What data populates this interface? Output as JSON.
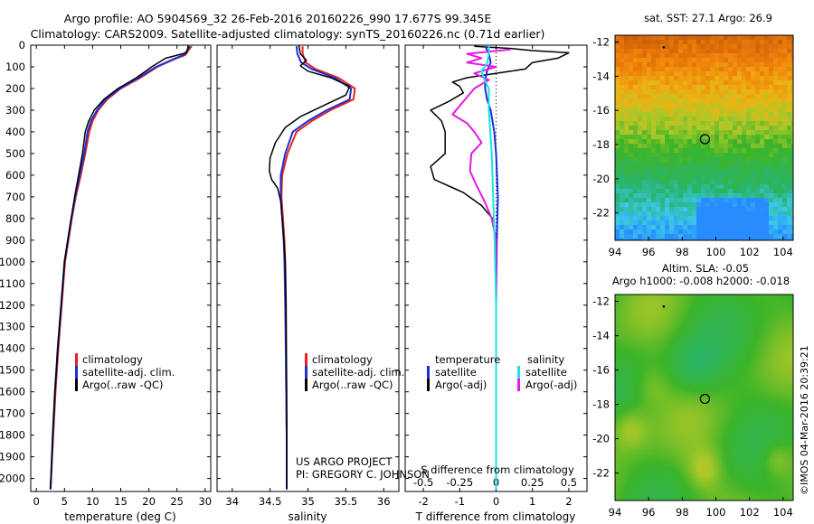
{
  "header": {
    "line1": "Argo profile: AO 5904569_32 26-Feb-2016 20160226_990 17.677S 99.345E",
    "line2": "Climatology: CARS2009. Satellite-adjusted climatology: synTS_20160226.nc (0.71d earlier)"
  },
  "colors": {
    "climatology": "#e8231e",
    "satellite": "#1a2fd6",
    "argo": "#000000",
    "sat_salinity": "#19e3e8",
    "argo_salinity": "#e619e6"
  },
  "chart_data": [
    {
      "id": "temperature",
      "type": "line",
      "xlabel": "temperature (deg C)",
      "ylabel": "",
      "xlim": [
        -1,
        31
      ],
      "ylim": [
        2060,
        0
      ],
      "xticks": [
        "0",
        "5",
        "10",
        "15",
        "20",
        "25",
        "30"
      ],
      "yticks": [
        "0",
        "100",
        "200",
        "300",
        "400",
        "500",
        "600",
        "700",
        "800",
        "900",
        "1000",
        "1100",
        "1200",
        "1300",
        "1400",
        "1500",
        "1600",
        "1700",
        "1800",
        "1900",
        "2000"
      ],
      "legend": [
        "climatology",
        "satellite-adj. clim.",
        "Argo(..raw -QC)"
      ],
      "series": [
        {
          "name": "climatology",
          "points": [
            [
              27.6,
              5
            ],
            [
              27.0,
              25
            ],
            [
              26.5,
              45
            ],
            [
              24.5,
              65
            ],
            [
              21.5,
              100
            ],
            [
              18.5,
              150
            ],
            [
              15.0,
              200
            ],
            [
              12.6,
              250
            ],
            [
              11.0,
              300
            ],
            [
              10.0,
              350
            ],
            [
              9.4,
              400
            ],
            [
              8.7,
              500
            ],
            [
              7.9,
              600
            ],
            [
              7.0,
              700
            ],
            [
              6.3,
              800
            ],
            [
              5.7,
              900
            ],
            [
              5.1,
              1000
            ],
            [
              4.5,
              1200
            ],
            [
              3.9,
              1400
            ],
            [
              3.4,
              1600
            ],
            [
              3.0,
              1800
            ],
            [
              2.6,
              2000
            ],
            [
              2.5,
              2050
            ]
          ]
        },
        {
          "name": "satellite",
          "points": [
            [
              27.3,
              5
            ],
            [
              26.8,
              25
            ],
            [
              26.2,
              45
            ],
            [
              24.3,
              65
            ],
            [
              21.3,
              100
            ],
            [
              18.2,
              150
            ],
            [
              14.8,
              200
            ],
            [
              12.3,
              250
            ],
            [
              10.8,
              300
            ],
            [
              9.7,
              350
            ],
            [
              9.1,
              400
            ],
            [
              8.5,
              500
            ],
            [
              7.7,
              600
            ],
            [
              6.9,
              700
            ],
            [
              6.2,
              800
            ],
            [
              5.6,
              900
            ],
            [
              5.0,
              1000
            ],
            [
              4.4,
              1200
            ],
            [
              3.8,
              1400
            ],
            [
              3.3,
              1600
            ],
            [
              2.9,
              1800
            ],
            [
              2.6,
              2000
            ],
            [
              2.5,
              2050
            ]
          ]
        },
        {
          "name": "argo",
          "points": [
            [
              27.0,
              0
            ],
            [
              26.9,
              15
            ],
            [
              26.7,
              35
            ],
            [
              23.0,
              60
            ],
            [
              20.5,
              100
            ],
            [
              17.8,
              150
            ],
            [
              14.5,
              200
            ],
            [
              12.0,
              250
            ],
            [
              10.3,
              300
            ],
            [
              9.3,
              350
            ],
            [
              8.7,
              400
            ],
            [
              8.2,
              500
            ],
            [
              7.5,
              600
            ],
            [
              6.8,
              700
            ],
            [
              6.2,
              800
            ],
            [
              5.6,
              900
            ],
            [
              5.0,
              1000
            ],
            [
              4.4,
              1200
            ],
            [
              3.8,
              1400
            ],
            [
              3.3,
              1600
            ],
            [
              2.9,
              1800
            ],
            [
              2.6,
              2000
            ],
            [
              2.5,
              2050
            ]
          ]
        }
      ]
    },
    {
      "id": "salinity",
      "type": "line",
      "xlabel": "salinity",
      "xlim": [
        33.8,
        36.2
      ],
      "ylim": [
        2060,
        0
      ],
      "xticks": [
        "34",
        "34.5",
        "35",
        "35.5",
        "36"
      ],
      "legend": [
        "climatology",
        "satellite-adj. clim.",
        "Argo(..raw -QC)"
      ],
      "credit_1": "US ARGO PROJECT",
      "credit_2": "PI: GREGORY C. JOHNSON",
      "series": [
        {
          "name": "climatology",
          "points": [
            [
              34.93,
              5
            ],
            [
              34.93,
              40
            ],
            [
              34.97,
              80
            ],
            [
              35.1,
              110
            ],
            [
              35.4,
              150
            ],
            [
              35.62,
              200
            ],
            [
              35.6,
              250
            ],
            [
              35.3,
              300
            ],
            [
              35.05,
              350
            ],
            [
              34.85,
              400
            ],
            [
              34.73,
              500
            ],
            [
              34.66,
              600
            ],
            [
              34.65,
              700
            ],
            [
              34.67,
              800
            ],
            [
              34.69,
              900
            ],
            [
              34.7,
              1000
            ],
            [
              34.71,
              1200
            ],
            [
              34.71,
              1500
            ],
            [
              34.72,
              1800
            ],
            [
              34.72,
              2050
            ]
          ]
        },
        {
          "name": "satellite",
          "points": [
            [
              34.85,
              5
            ],
            [
              34.86,
              40
            ],
            [
              34.91,
              80
            ],
            [
              35.05,
              110
            ],
            [
              35.35,
              150
            ],
            [
              35.57,
              200
            ],
            [
              35.55,
              250
            ],
            [
              35.25,
              300
            ],
            [
              35.0,
              350
            ],
            [
              34.8,
              400
            ],
            [
              34.7,
              500
            ],
            [
              34.64,
              600
            ],
            [
              34.64,
              700
            ],
            [
              34.66,
              800
            ],
            [
              34.68,
              900
            ],
            [
              34.69,
              1000
            ],
            [
              34.7,
              1200
            ],
            [
              34.71,
              1500
            ],
            [
              34.72,
              1800
            ],
            [
              34.72,
              2050
            ]
          ]
        },
        {
          "name": "argo",
          "points": [
            [
              34.88,
              0
            ],
            [
              34.9,
              40
            ],
            [
              34.98,
              70
            ],
            [
              34.9,
              95
            ],
            [
              35.0,
              120
            ],
            [
              35.3,
              150
            ],
            [
              35.55,
              190
            ],
            [
              35.5,
              230
            ],
            [
              35.2,
              280
            ],
            [
              34.9,
              330
            ],
            [
              34.7,
              380
            ],
            [
              34.57,
              450
            ],
            [
              34.5,
              520
            ],
            [
              34.49,
              580
            ],
            [
              34.52,
              620
            ],
            [
              34.6,
              660
            ],
            [
              34.64,
              720
            ],
            [
              34.66,
              800
            ],
            [
              34.68,
              900
            ],
            [
              34.7,
              1000
            ],
            [
              34.71,
              1200
            ],
            [
              34.72,
              1600
            ],
            [
              34.72,
              2050
            ]
          ]
        }
      ]
    },
    {
      "id": "difference",
      "type": "line",
      "xlabel": "T difference from climatology",
      "xlabel_top": "S difference from climatology",
      "xlim": [
        -2.5,
        2.5
      ],
      "ylim": [
        2060,
        0
      ],
      "xticks": [
        "-2",
        "-1",
        "0",
        "1",
        "2"
      ],
      "sticks": [
        "-0.5",
        "-0.25",
        "0",
        "0.25",
        "0.5"
      ],
      "legend_t_title": "temperature",
      "legend_s_title": "salinity",
      "legend_t": [
        "satellite",
        "Argo(-adj)"
      ],
      "legend_s": [
        "satellite",
        "Argo(-adj)"
      ],
      "series": [
        {
          "name": "T satellite",
          "points": [
            [
              -0.3,
              5
            ],
            [
              -0.2,
              40
            ],
            [
              -0.15,
              80
            ],
            [
              -0.25,
              120
            ],
            [
              -0.3,
              160
            ],
            [
              -0.3,
              200
            ],
            [
              -0.25,
              250
            ],
            [
              -0.15,
              300
            ],
            [
              -0.05,
              400
            ],
            [
              0,
              500
            ],
            [
              0.05,
              700
            ],
            [
              0.02,
              900
            ],
            [
              0,
              1200
            ],
            [
              0,
              2050
            ]
          ]
        },
        {
          "name": "T Argo",
          "points": [
            [
              -0.6,
              5
            ],
            [
              0.4,
              15
            ],
            [
              1.0,
              25
            ],
            [
              2.0,
              35
            ],
            [
              1.7,
              60
            ],
            [
              1.0,
              80
            ],
            [
              0.8,
              110
            ],
            [
              -0.8,
              150
            ],
            [
              -1.2,
              170
            ],
            [
              -1.0,
              190
            ],
            [
              -0.9,
              220
            ],
            [
              -1.3,
              260
            ],
            [
              -1.8,
              300
            ],
            [
              -1.5,
              350
            ],
            [
              -1.4,
              400
            ],
            [
              -1.4,
              500
            ],
            [
              -1.8,
              560
            ],
            [
              -1.7,
              620
            ],
            [
              -0.9,
              680
            ],
            [
              -0.4,
              740
            ],
            [
              -0.1,
              800
            ],
            [
              0,
              900
            ],
            [
              0,
              1200
            ],
            [
              0,
              2050
            ]
          ]
        },
        {
          "name": "S satellite",
          "points": [
            [
              -0.05,
              5
            ],
            [
              -0.05,
              40
            ],
            [
              -0.06,
              80
            ],
            [
              -0.1,
              120
            ],
            [
              -0.08,
              160
            ],
            [
              -0.05,
              200
            ],
            [
              -0.05,
              250
            ],
            [
              -0.05,
              300
            ],
            [
              -0.04,
              400
            ],
            [
              -0.03,
              500
            ],
            [
              -0.02,
              700
            ],
            [
              -0.01,
              900
            ],
            [
              0,
              1200
            ],
            [
              0,
              2050
            ]
          ]
        },
        {
          "name": "S Argo",
          "points": [
            [
              0.1,
              20
            ],
            [
              -0.2,
              40
            ],
            [
              -0.1,
              60
            ],
            [
              -0.2,
              80
            ],
            [
              0.0,
              100
            ],
            [
              -0.15,
              130
            ],
            [
              -0.05,
              160
            ],
            [
              -0.15,
              200
            ],
            [
              -0.2,
              240
            ],
            [
              -0.25,
              280
            ],
            [
              -0.3,
              320
            ],
            [
              -0.2,
              360
            ],
            [
              -0.15,
              400
            ],
            [
              -0.1,
              450
            ],
            [
              -0.17,
              500
            ],
            [
              -0.18,
              580
            ],
            [
              -0.14,
              640
            ],
            [
              -0.08,
              720
            ],
            [
              -0.03,
              800
            ],
            [
              0,
              900
            ],
            [
              0,
              2050
            ]
          ]
        }
      ]
    }
  ],
  "maps": {
    "sst": {
      "title": "sat. SST: 27.1  Argo: 26.9",
      "xticks": [
        "94",
        "96",
        "98",
        "100",
        "102",
        "104"
      ],
      "yticks": [
        "-12",
        "-14",
        "-16",
        "-18",
        "-20",
        "-22"
      ],
      "xlim": [
        94,
        104.6
      ],
      "ylim": [
        -23.6,
        -11.6
      ],
      "argo_position": [
        99.35,
        -17.68
      ],
      "marker_position": [
        96.9,
        -12.3
      ]
    },
    "sla": {
      "title_1": "Altim. SLA: -0.05",
      "title_2": "Argo h1000: -0.008 h2000: -0.018",
      "xticks": [
        "94",
        "96",
        "98",
        "100",
        "102",
        "104"
      ],
      "yticks": [
        "-12",
        "-14",
        "-16",
        "-18",
        "-20",
        "-22"
      ],
      "xlim": [
        94,
        104.6
      ],
      "ylim": [
        -23.6,
        -11.6
      ],
      "argo_position": [
        99.35,
        -17.68
      ],
      "marker_position": [
        96.9,
        -12.3
      ]
    }
  },
  "watermark": "©IMOS 04-Mar-2016 20:39:21"
}
